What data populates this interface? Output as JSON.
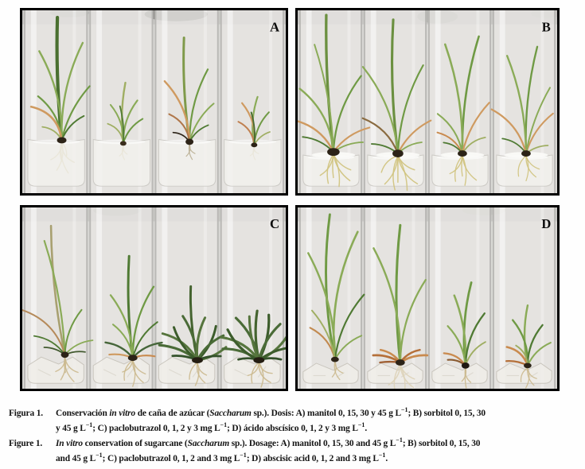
{
  "figure": {
    "panels": [
      {
        "label": "A",
        "description": "Four test tubes with in vitro sugarcane plantlets, manitol doses 0, 15, 30 and 45 g/L from left to right, white roots in gel medium"
      },
      {
        "label": "B",
        "description": "Four test tubes with in vitro sugarcane plantlets, sorbitol doses 0, 15, 30 and 45 g/L from left to right, yellow fibrous roots"
      },
      {
        "label": "C",
        "description": "Four test tubes with in vitro sugarcane plantlets, paclobutrazol doses 0, 1, 2 and 3 mg/L from left to right, increasingly stunted rosettes"
      },
      {
        "label": "D",
        "description": "Four test tubes with in vitro sugarcane plantlets, abscisic acid doses 0, 1, 2 and 3 mg/L from left to right, dried orange basal leaves"
      }
    ],
    "caption": {
      "spanish": {
        "label": "Figura 1.",
        "segments": [
          {
            "t": "Conservación ",
            "s": "b"
          },
          {
            "t": "in vitro",
            "s": "bi"
          },
          {
            "t": " de caña de azúcar (",
            "s": "b"
          },
          {
            "t": "Saccharum",
            "s": "bi"
          },
          {
            "t": " sp.). Dosis: A) manitol 0, 15, 30 y 45 g L",
            "s": "b"
          },
          {
            "t": "−1",
            "s": "sup"
          },
          {
            "t": "; B) sorbitol 0, 15, 30",
            "s": "b"
          },
          {
            "s": "br"
          },
          {
            "t": "y 45 g L",
            "s": "b"
          },
          {
            "t": "−1",
            "s": "sup"
          },
          {
            "t": "; C) paclobutrazol 0, 1, 2 y 3 mg L",
            "s": "b"
          },
          {
            "t": "−1",
            "s": "sup"
          },
          {
            "t": "; D) ácido abscísico 0, 1, 2 y 3 mg L",
            "s": "b"
          },
          {
            "t": "−1",
            "s": "sup"
          },
          {
            "t": ".",
            "s": "b"
          }
        ]
      },
      "english": {
        "label": "Figure 1.",
        "segments": [
          {
            "t": "In vitro",
            "s": "bi"
          },
          {
            "t": " conservation of sugarcane (",
            "s": "b"
          },
          {
            "t": "Saccharum",
            "s": "bi"
          },
          {
            "t": " sp.). Dosage: A) manitol 0, 15, 30 and 45 g L",
            "s": "b"
          },
          {
            "t": "−1",
            "s": "sup"
          },
          {
            "t": "; B) sorbitol 0, 15, 30",
            "s": "b"
          },
          {
            "s": "br"
          },
          {
            "t": "and 45 g L",
            "s": "b"
          },
          {
            "t": "−1",
            "s": "sup"
          },
          {
            "t": "; C) paclobutrazol 0, 1, 2 and 3 mg L",
            "s": "b"
          },
          {
            "t": "−1",
            "s": "sup"
          },
          {
            "t": "; D) abscisic acid 0, 1, 2 and 3 mg L",
            "s": "b"
          },
          {
            "t": "−1",
            "s": "sup"
          },
          {
            "t": ".",
            "s": "b"
          }
        ]
      }
    },
    "colors": {
      "panel_border": "#000000",
      "caption_ink": "#141414",
      "photo_background": "#d9d8d5"
    }
  }
}
